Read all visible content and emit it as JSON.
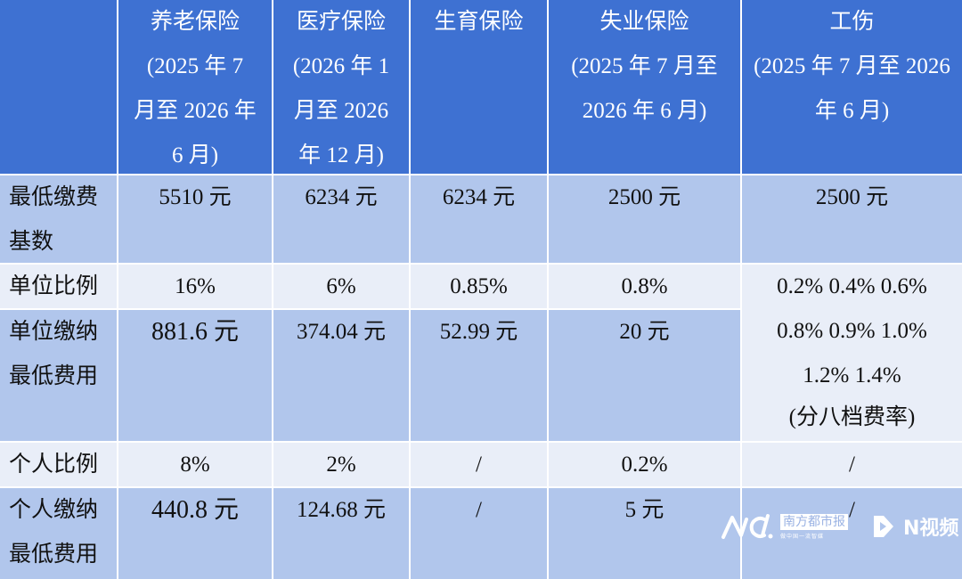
{
  "header": {
    "corner": "",
    "columns": [
      {
        "lines": [
          "养老保险",
          "(2025 年 7",
          "月至 2026 年",
          "6 月)"
        ]
      },
      {
        "lines": [
          "医疗保险",
          "(2026 年 1",
          "月至 2026",
          "年 12 月)"
        ]
      },
      {
        "lines": [
          "生育保险"
        ]
      },
      {
        "lines": [
          "失业保险",
          "(2025 年 7 月至",
          "2026 年 6 月)"
        ]
      },
      {
        "lines": [
          "工伤",
          "(2025 年 7 月至 2026",
          "年 6 月)"
        ]
      }
    ]
  },
  "rows": {
    "min_base": {
      "label": [
        "最低缴费",
        "基数"
      ],
      "values": [
        "5510 元",
        "6234 元",
        "6234 元",
        "2500 元",
        "2500 元"
      ]
    },
    "employer_rate": {
      "label": [
        "单位比例"
      ],
      "values": [
        "16%",
        "6%",
        "0.85%",
        "0.8%"
      ]
    },
    "employer_min_fee": {
      "label": [
        "单位缴纳",
        "最低费用"
      ],
      "values": [
        "881.6 元",
        "374.04 元",
        "52.99 元",
        "20 元"
      ]
    },
    "injury_merged": [
      "0.2% 0.4% 0.6%",
      "0.8% 0.9% 1.0%",
      "1.2% 1.4%",
      "(分八档费率)"
    ],
    "personal_rate": {
      "label": [
        "个人比例"
      ],
      "values": [
        "8%",
        "2%",
        "/",
        "0.2%",
        "/"
      ]
    },
    "personal_min_fee": {
      "label": [
        "个人缴纳",
        "最低费用"
      ],
      "values": [
        "440.8 元",
        "124.68 元",
        "/",
        "5 元",
        "/"
      ]
    }
  },
  "watermark": {
    "logo": "NC.",
    "brand": "南方都市报",
    "slogan": "做中国一流智媒",
    "video": "N视频"
  },
  "colors": {
    "header": "#3e71d2",
    "row_medium": "#b1c6ec",
    "row_light": "#e9eef8"
  }
}
